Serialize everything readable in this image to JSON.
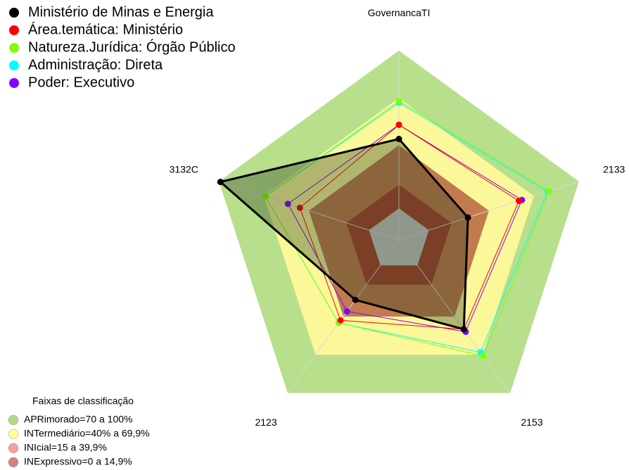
{
  "chart_data": {
    "type": "radar",
    "categories": [
      "GovernancaTI",
      "2133",
      "2153",
      "2123",
      "3132C"
    ],
    "ylim": [
      -20,
      100
    ],
    "series": [
      {
        "name": "Ministério de Minas e Energia",
        "color": "#000000",
        "values": [
          44,
          26,
          50,
          27,
          99
        ]
      },
      {
        "name": "Área.temática: Ministério",
        "color": "#ff0000",
        "values": [
          53,
          60,
          50,
          43,
          46
        ]
      },
      {
        "name": "Natureza.Jurídica: Órgão Público",
        "color": "#7fff00",
        "values": [
          68,
          80,
          71,
          45,
          69
        ]
      },
      {
        "name": "Administração: Direta",
        "color": "#00ffff",
        "values": [
          67,
          79,
          68,
          45,
          69
        ]
      },
      {
        "name": "Poder: Executivo",
        "color": "#8000ff",
        "values": [
          53,
          62,
          52,
          36,
          54
        ]
      }
    ],
    "bands_title": "Faixas de classificação",
    "bands": [
      {
        "name": "APRimorado=70 a 100%",
        "color": "#b0da8a",
        "fill": "#b8df8c",
        "from": 70,
        "to": 100
      },
      {
        "name": "INTermediário=40% a 69,9%",
        "color": "#ffff99",
        "fill": "#fbf89a",
        "from": 40,
        "to": 70
      },
      {
        "name": "INIcial=15 a 39,9%",
        "color": "#f4a0a0",
        "fill": "#c27b4f",
        "from": 15,
        "to": 40
      },
      {
        "name": "INExpressivo=0 a 14,9%",
        "color": "#d98080",
        "fill": "#a8402c",
        "from": 0,
        "to": 15
      }
    ],
    "inner_color": "#c8c8c8"
  }
}
